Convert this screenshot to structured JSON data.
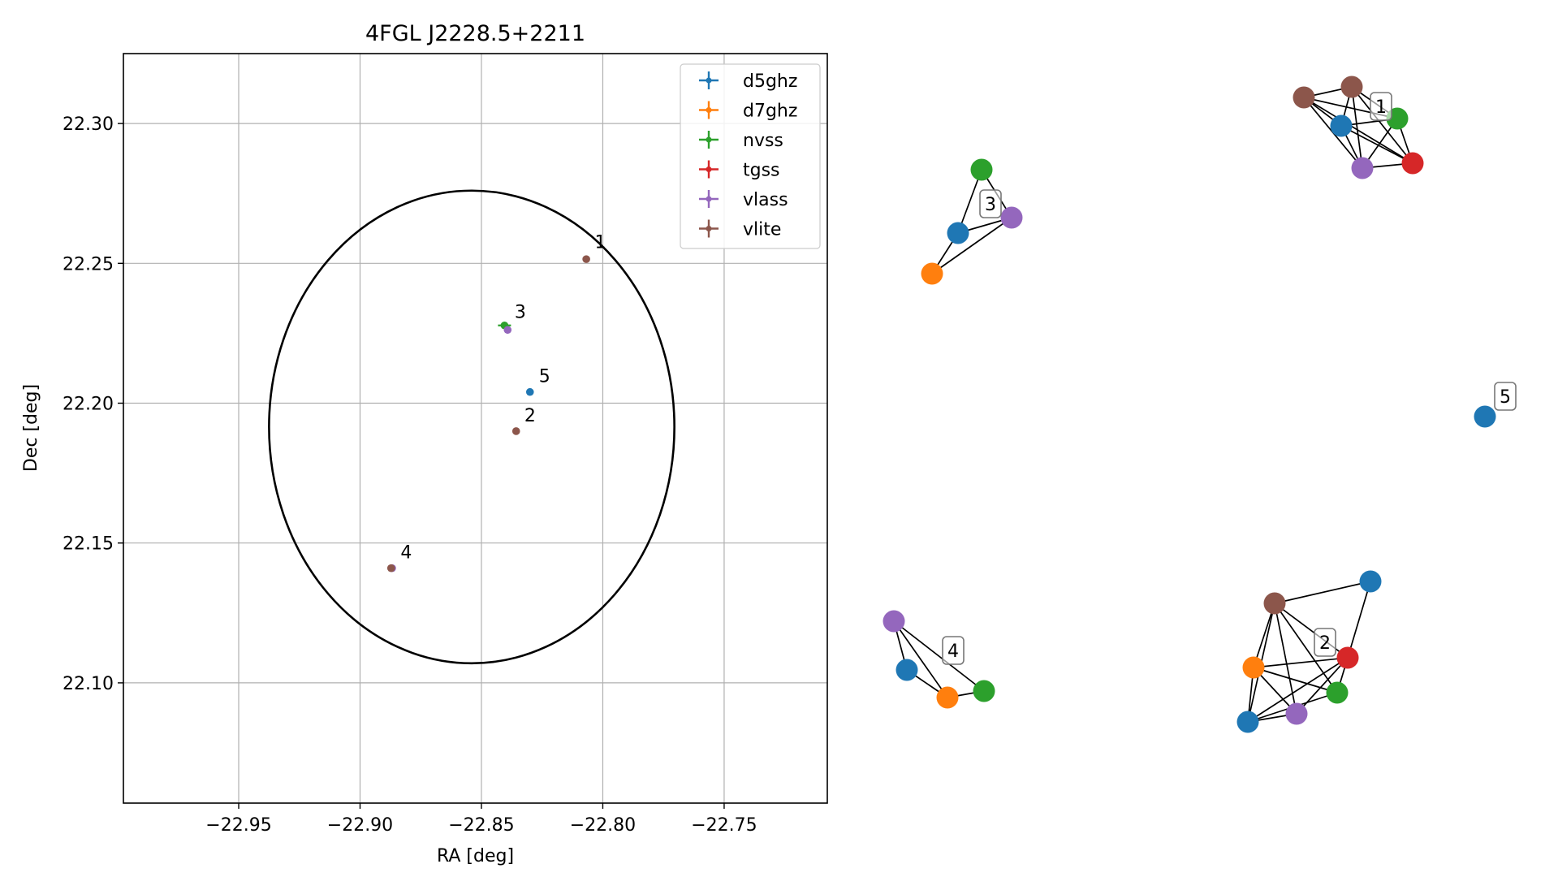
{
  "chart_data": {
    "type": "scatter",
    "title": "4FGL J2228.5+2211",
    "xlabel": "RA [deg]",
    "ylabel": "Dec [deg]",
    "xlim": [
      -22.9975,
      -22.7075
    ],
    "ylim": [
      22.057,
      22.325
    ],
    "xticks": [
      -22.95,
      -22.9,
      -22.85,
      -22.8,
      -22.75
    ],
    "xtick_labels": [
      "−22.95",
      "−22.90",
      "−22.85",
      "−22.80",
      "−22.75"
    ],
    "yticks": [
      22.1,
      22.15,
      22.2,
      22.25,
      22.3
    ],
    "ytick_labels": [
      "22.10",
      "22.15",
      "22.20",
      "22.25",
      "22.30"
    ],
    "grid": true,
    "legend_position": "top-right",
    "ellipse": {
      "center": [
        -22.854,
        22.1915
      ],
      "ra_halfwidth": 0.0835,
      "dec_halfheight": 0.0845,
      "color": "#000000"
    },
    "series": [
      {
        "name": "d5ghz",
        "color": "#1f77b4",
        "points": [
          {
            "x": -22.83,
            "y": 22.204
          }
        ]
      },
      {
        "name": "d7ghz",
        "color": "#ff7f0e",
        "points": []
      },
      {
        "name": "nvss",
        "color": "#2ca02c",
        "points": [
          {
            "x": -22.8405,
            "y": 22.2278
          }
        ]
      },
      {
        "name": "tgss",
        "color": "#d62728",
        "points": []
      },
      {
        "name": "vlass",
        "color": "#9467bd",
        "points": [
          {
            "x": -22.8392,
            "y": 22.2262
          },
          {
            "x": -22.8868,
            "y": 22.141
          }
        ]
      },
      {
        "name": "vlite",
        "color": "#8c564b",
        "points": [
          {
            "x": -22.8068,
            "y": 22.2515
          },
          {
            "x": -22.8357,
            "y": 22.19
          },
          {
            "x": -22.8872,
            "y": 22.141
          }
        ]
      }
    ],
    "annotations": [
      {
        "text": "1",
        "x": -22.806,
        "y": 22.252
      },
      {
        "text": "2",
        "x": -22.835,
        "y": 22.19
      },
      {
        "text": "3",
        "x": -22.839,
        "y": 22.227
      },
      {
        "text": "4",
        "x": -22.886,
        "y": 22.141
      },
      {
        "text": "5",
        "x": -22.829,
        "y": 22.204
      }
    ]
  },
  "graph": {
    "nodes": [
      {
        "id": "c1-vlite-a",
        "color": "#8c564b"
      },
      {
        "id": "c1-vlite-b",
        "color": "#8c564b"
      },
      {
        "id": "c1-d5",
        "color": "#1f77b4"
      },
      {
        "id": "c1-nvss",
        "color": "#2ca02c"
      },
      {
        "id": "c1-vlass",
        "color": "#9467bd"
      },
      {
        "id": "c1-tgss",
        "color": "#d62728"
      },
      {
        "id": "c3-nvss",
        "color": "#2ca02c"
      },
      {
        "id": "c3-d5",
        "color": "#1f77b4"
      },
      {
        "id": "c3-vlass",
        "color": "#9467bd"
      },
      {
        "id": "c3-d7",
        "color": "#ff7f0e"
      },
      {
        "id": "c5-d5",
        "color": "#1f77b4"
      },
      {
        "id": "c4-vlass",
        "color": "#9467bd"
      },
      {
        "id": "c4-d5",
        "color": "#1f77b4"
      },
      {
        "id": "c4-d7",
        "color": "#ff7f0e"
      },
      {
        "id": "c4-nvss",
        "color": "#2ca02c"
      },
      {
        "id": "c2-d5-a",
        "color": "#1f77b4"
      },
      {
        "id": "c2-vlite",
        "color": "#8c564b"
      },
      {
        "id": "c2-tgss",
        "color": "#d62728"
      },
      {
        "id": "c2-d7",
        "color": "#ff7f0e"
      },
      {
        "id": "c2-nvss",
        "color": "#2ca02c"
      },
      {
        "id": "c2-vlass",
        "color": "#9467bd"
      },
      {
        "id": "c2-d5-b",
        "color": "#1f77b4"
      }
    ],
    "edges": [
      [
        "c1-vlite-a",
        "c1-vlite-b"
      ],
      [
        "c1-vlite-a",
        "c1-d5"
      ],
      [
        "c1-vlite-a",
        "c1-nvss"
      ],
      [
        "c1-vlite-a",
        "c1-vlass"
      ],
      [
        "c1-vlite-a",
        "c1-tgss"
      ],
      [
        "c1-vlite-b",
        "c1-d5"
      ],
      [
        "c1-vlite-b",
        "c1-nvss"
      ],
      [
        "c1-vlite-b",
        "c1-vlass"
      ],
      [
        "c1-vlite-b",
        "c1-tgss"
      ],
      [
        "c1-d5",
        "c1-nvss"
      ],
      [
        "c1-d5",
        "c1-vlass"
      ],
      [
        "c1-d5",
        "c1-tgss"
      ],
      [
        "c1-nvss",
        "c1-vlass"
      ],
      [
        "c1-nvss",
        "c1-tgss"
      ],
      [
        "c1-vlass",
        "c1-tgss"
      ],
      [
        "c3-nvss",
        "c3-d5"
      ],
      [
        "c3-nvss",
        "c3-vlass"
      ],
      [
        "c3-d5",
        "c3-vlass"
      ],
      [
        "c3-d5",
        "c3-d7"
      ],
      [
        "c3-d7",
        "c3-vlass"
      ],
      [
        "c4-vlass",
        "c4-d5"
      ],
      [
        "c4-vlass",
        "c4-d7"
      ],
      [
        "c4-vlass",
        "c4-nvss"
      ],
      [
        "c4-d5",
        "c4-d7"
      ],
      [
        "c4-d7",
        "c4-nvss"
      ],
      [
        "c2-vlite",
        "c2-d5-a"
      ],
      [
        "c2-vlite",
        "c2-d7"
      ],
      [
        "c2-vlite",
        "c2-nvss"
      ],
      [
        "c2-vlite",
        "c2-vlass"
      ],
      [
        "c2-vlite",
        "c2-tgss"
      ],
      [
        "c2-vlite",
        "c2-d5-b"
      ],
      [
        "c2-d5-a",
        "c2-tgss"
      ],
      [
        "c2-d7",
        "c2-tgss"
      ],
      [
        "c2-d7",
        "c2-nvss"
      ],
      [
        "c2-d7",
        "c2-vlass"
      ],
      [
        "c2-d7",
        "c2-d5-b"
      ],
      [
        "c2-tgss",
        "c2-vlass"
      ],
      [
        "c2-tgss",
        "c2-d5-b"
      ],
      [
        "c2-tgss",
        "c2-nvss"
      ],
      [
        "c2-nvss",
        "c2-d5-b"
      ],
      [
        "c2-vlass",
        "c2-d5-b"
      ]
    ],
    "labels": [
      {
        "text": "1"
      },
      {
        "text": "3"
      },
      {
        "text": "5"
      },
      {
        "text": "4"
      },
      {
        "text": "2"
      }
    ]
  }
}
